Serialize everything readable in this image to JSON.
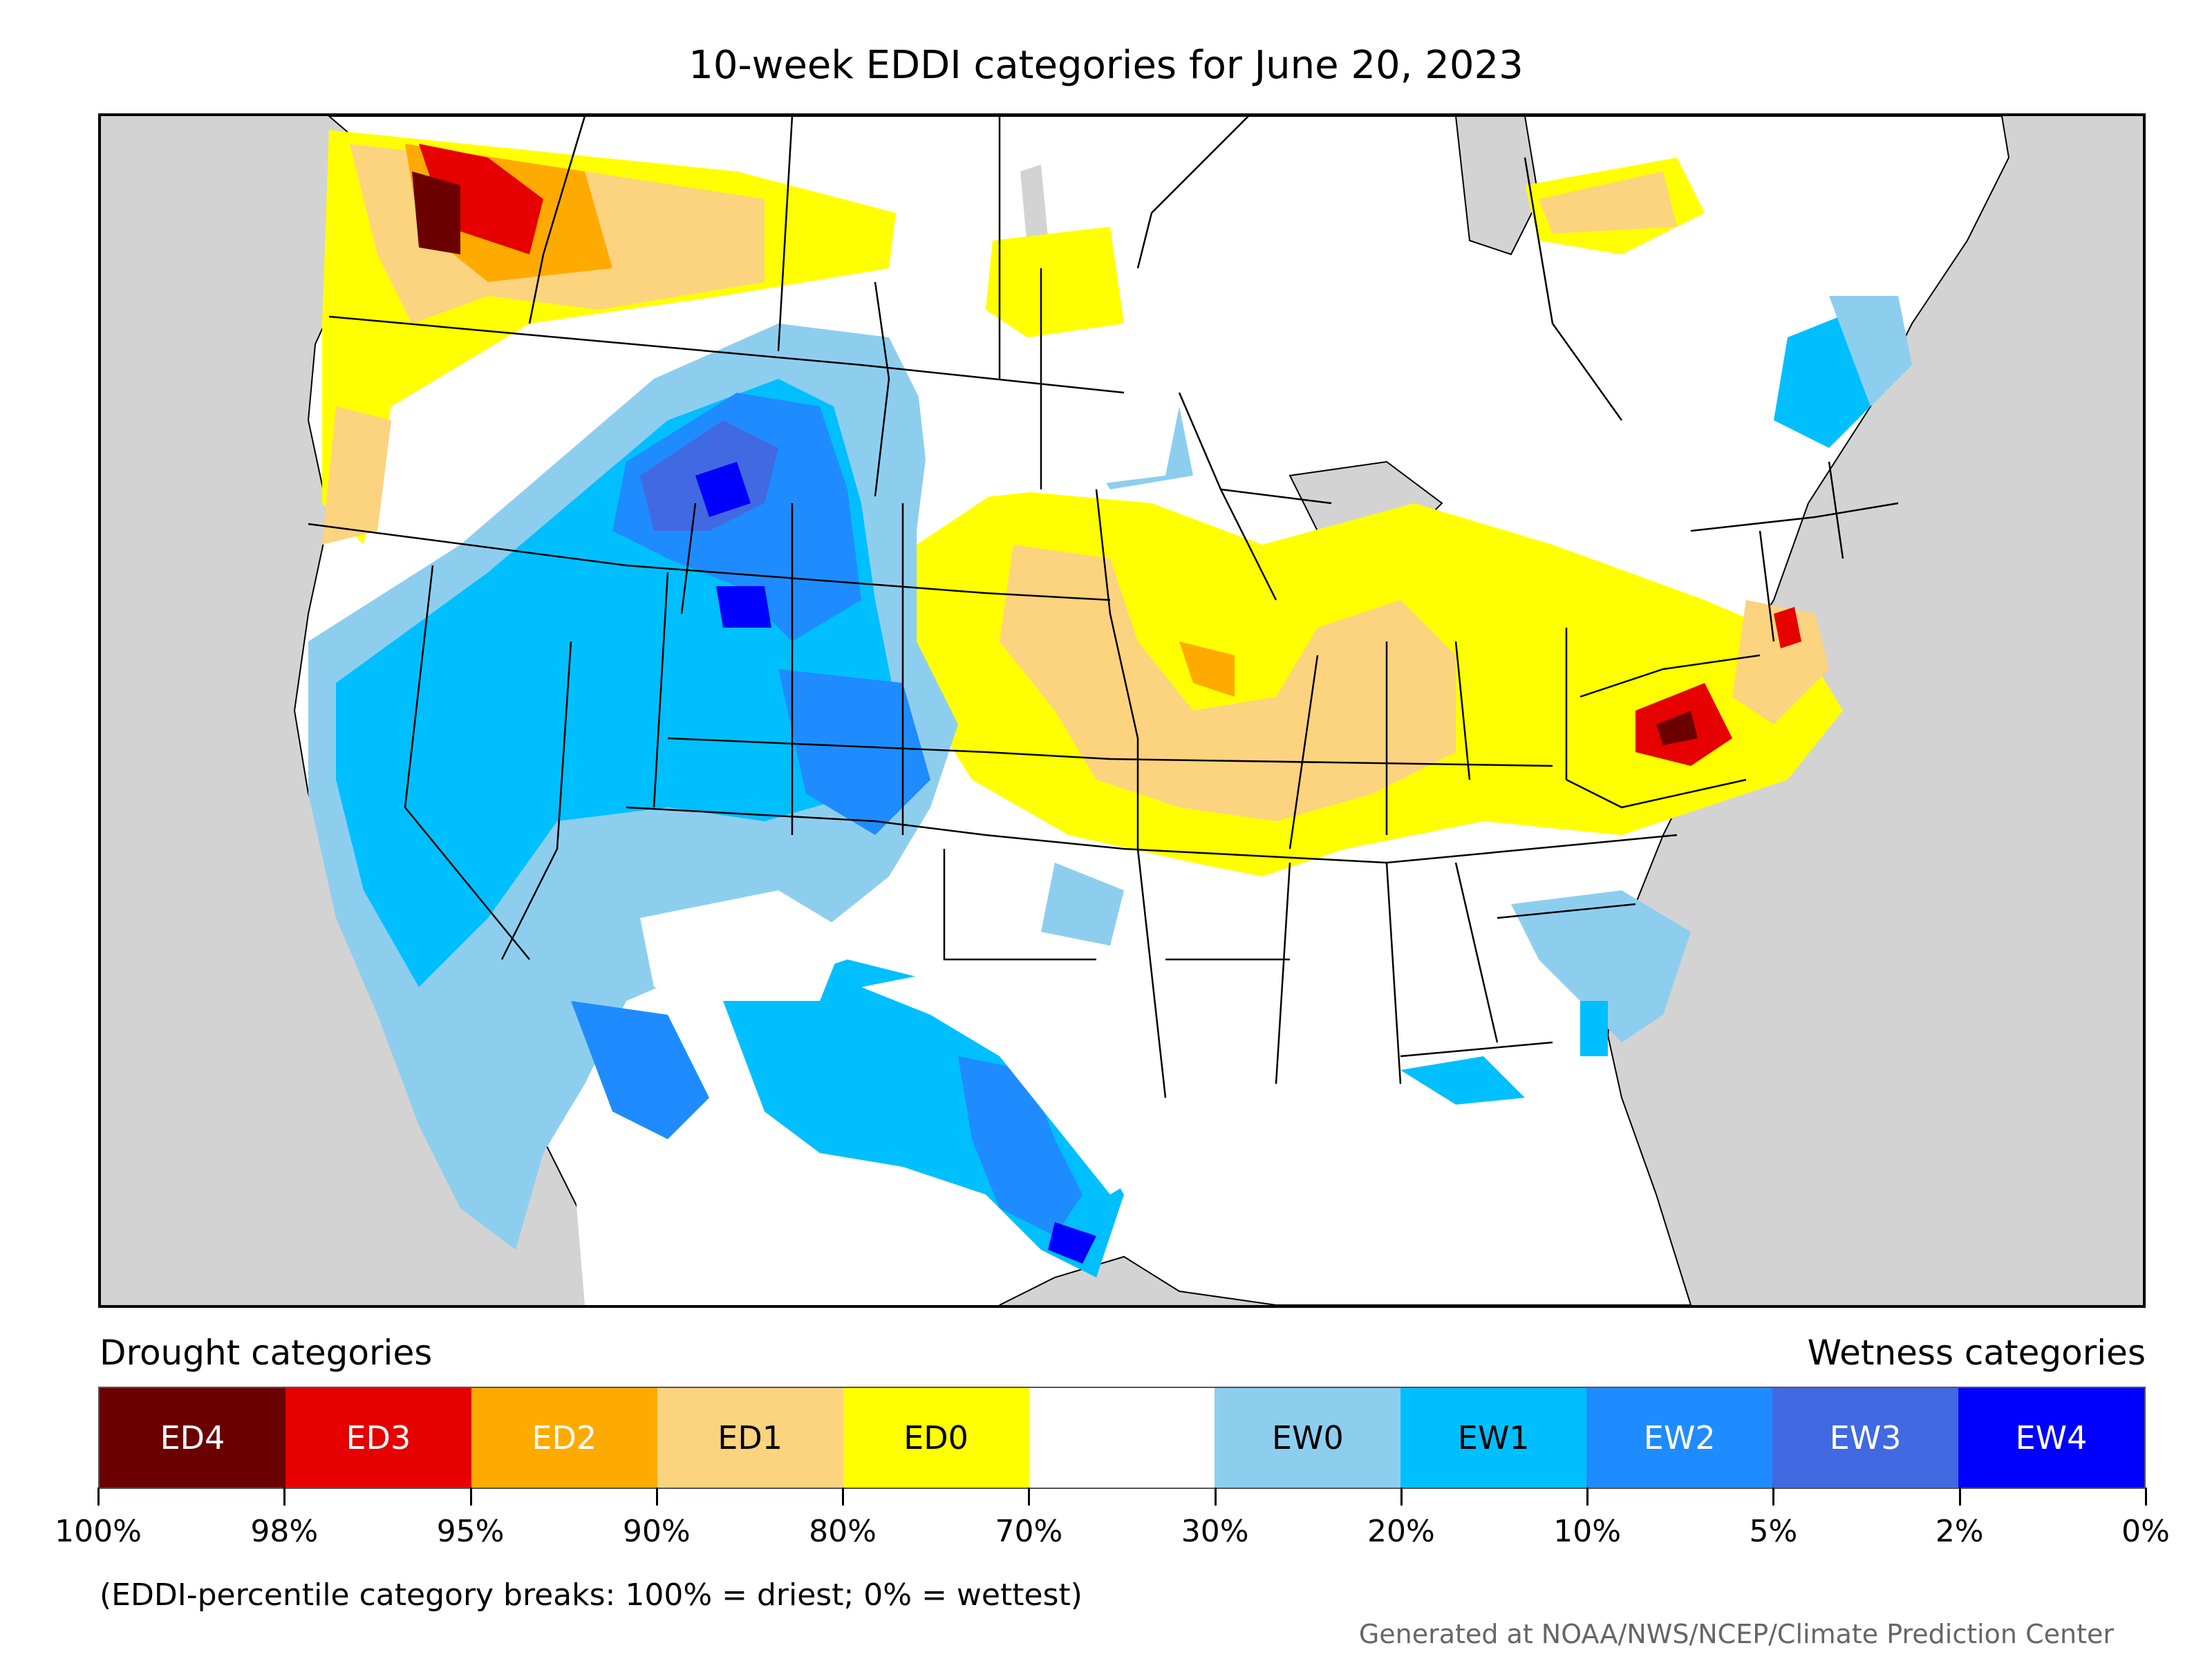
{
  "title": "10-week EDDI categories for June 20, 2023",
  "drought_label": "Drought categories",
  "wetness_label": "Wetness categories",
  "legend": [
    {
      "label": "ED4",
      "color": "#6b0000",
      "text_color": "#ffffff"
    },
    {
      "label": "ED3",
      "color": "#e60000",
      "text_color": "#ffffff"
    },
    {
      "label": "ED2",
      "color": "#ffaa00",
      "text_color": "#ffffff"
    },
    {
      "label": "ED1",
      "color": "#fcd37f",
      "text_color": "#000000"
    },
    {
      "label": "ED0",
      "color": "#ffff00",
      "text_color": "#000000"
    },
    {
      "label": "",
      "color": "#ffffff",
      "text_color": "#000000"
    },
    {
      "label": "EW0",
      "color": "#8dceef",
      "text_color": "#000000"
    },
    {
      "label": "EW1",
      "color": "#00bfff",
      "text_color": "#000000"
    },
    {
      "label": "EW2",
      "color": "#1e8cff",
      "text_color": "#ffffff"
    },
    {
      "label": "EW3",
      "color": "#4169e1",
      "text_color": "#ffffff"
    },
    {
      "label": "EW4",
      "color": "#0000ff",
      "text_color": "#ffffff"
    }
  ],
  "tick_labels": [
    "100%",
    "98%",
    "95%",
    "90%",
    "80%",
    "70%",
    "30%",
    "20%",
    "10%",
    "5%",
    "2%",
    "0%"
  ],
  "note": "(EDDI-percentile category breaks: 100% = driest; 0% = wettest)",
  "credit": "Generated at NOAA/NWS/NCEP/Climate Prediction Center",
  "colors": {
    "background_gray": "#d3d3d3",
    "land": "#ffffff",
    "border": "#000000"
  }
}
